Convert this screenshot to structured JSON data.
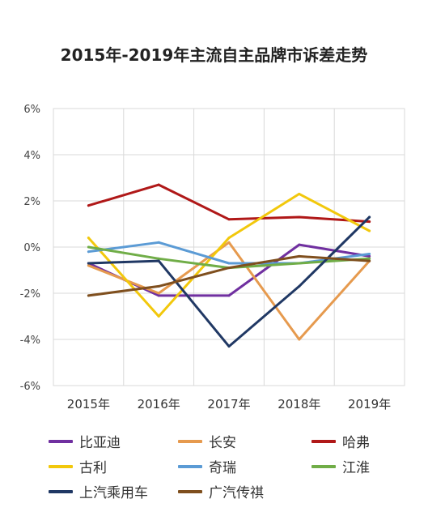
{
  "chart_data": {
    "type": "line",
    "title": "2015年-2019年主流自主品牌市诉差走势",
    "categories": [
      "2015年",
      "2016年",
      "2017年",
      "2018年",
      "2019年"
    ],
    "ylim": [
      -6,
      6
    ],
    "yticks": [
      -6,
      -4,
      -2,
      0,
      2,
      4,
      6
    ],
    "ytick_labels": [
      "-6%",
      "-4%",
      "-2%",
      "0%",
      "2%",
      "4%",
      "6%"
    ],
    "xlabel": "",
    "ylabel": "",
    "grid": true,
    "legend_position": "bottom",
    "series": [
      {
        "name": "比亚迪",
        "color": "#7030a0",
        "values": [
          -0.7,
          -2.1,
          -2.1,
          0.1,
          -0.4
        ]
      },
      {
        "name": "长安",
        "color": "#e69a4e",
        "values": [
          -0.8,
          -2.0,
          0.2,
          -4.0,
          -0.6
        ]
      },
      {
        "name": "哈弗",
        "color": "#b01818",
        "values": [
          1.8,
          2.7,
          1.2,
          1.3,
          1.1
        ]
      },
      {
        "name": "古利",
        "color": "#f2c80c",
        "values": [
          0.4,
          -3.0,
          0.4,
          2.3,
          0.7
        ]
      },
      {
        "name": "奇瑞",
        "color": "#5b9bd5",
        "values": [
          -0.2,
          0.2,
          -0.7,
          -0.7,
          -0.3
        ]
      },
      {
        "name": "江淮",
        "color": "#70ad47",
        "values": [
          0.0,
          -0.5,
          -0.9,
          -0.7,
          -0.5
        ]
      },
      {
        "name": "上汽乘用车",
        "color": "#203864",
        "values": [
          -0.7,
          -0.6,
          -4.3,
          -1.7,
          1.3
        ]
      },
      {
        "name": "广汽传祺",
        "color": "#7f4f1e",
        "values": [
          -2.1,
          -1.7,
          -0.9,
          -0.4,
          -0.6
        ]
      }
    ]
  }
}
